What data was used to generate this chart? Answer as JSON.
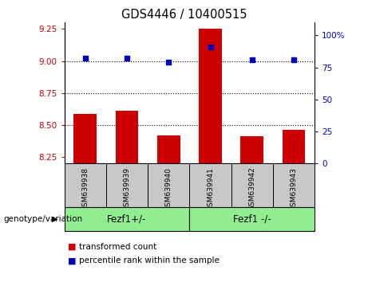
{
  "title": "GDS4446 / 10400515",
  "samples": [
    "GSM639938",
    "GSM639939",
    "GSM639940",
    "GSM639941",
    "GSM639942",
    "GSM639943"
  ],
  "bar_values": [
    8.585,
    8.615,
    8.42,
    9.25,
    8.415,
    8.465
  ],
  "dot_values": [
    82,
    82,
    79,
    91,
    81,
    81
  ],
  "ylim_left": [
    8.2,
    9.3
  ],
  "ylim_right": [
    0,
    110
  ],
  "yticks_left": [
    8.25,
    8.5,
    8.75,
    9.0,
    9.25
  ],
  "yticks_right": [
    0,
    25,
    50,
    75,
    100
  ],
  "ytick_labels_right": [
    "0",
    "25",
    "50",
    "75",
    "100%"
  ],
  "hlines": [
    9.0,
    8.75,
    8.5
  ],
  "bar_color": "#cc0000",
  "dot_color": "#0000bb",
  "group1_label": "Fezf1+/-",
  "group2_label": "Fezf1 -/-",
  "group1_indices": [
    0,
    1,
    2
  ],
  "group2_indices": [
    3,
    4,
    5
  ],
  "genotype_label": "genotype/variation",
  "legend_bar_label": "transformed count",
  "legend_dot_label": "percentile rank within the sample",
  "tick_label_color_left": "#cc0000",
  "tick_label_color_right": "#0000bb",
  "bar_bottom": 8.2,
  "green_fill": "#90ee90",
  "grey_fill": "#c8c8c8"
}
